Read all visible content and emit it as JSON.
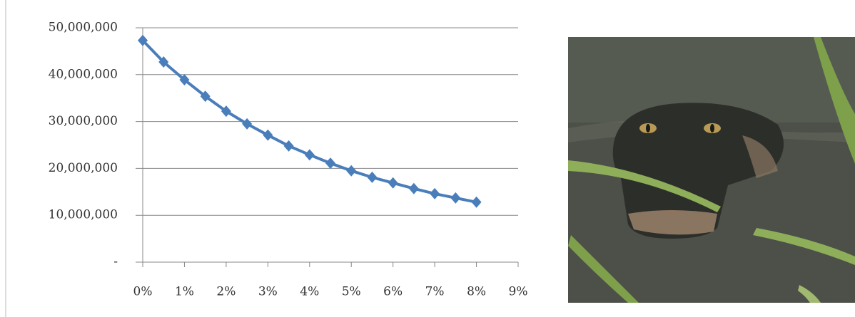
{
  "chart_data": {
    "type": "line",
    "x": [
      0,
      0.5,
      1,
      1.5,
      2,
      2.5,
      3,
      3.5,
      4,
      4.5,
      5,
      5.5,
      6,
      6.5,
      7,
      7.5,
      8
    ],
    "series": [
      {
        "color": "#4a7ebb",
        "values": [
          47300000,
          42700000,
          38900000,
          35400000,
          32200000,
          29500000,
          27100000,
          24800000,
          22900000,
          21100000,
          19500000,
          18100000,
          16900000,
          15700000,
          14600000,
          13700000,
          12800000
        ]
      }
    ],
    "xlim": [
      0,
      9
    ],
    "xticks": [
      {
        "value": 0,
        "label": "0%"
      },
      {
        "value": 1,
        "label": "1%"
      },
      {
        "value": 2,
        "label": "2%"
      },
      {
        "value": 3,
        "label": "3%"
      },
      {
        "value": 4,
        "label": "4%"
      },
      {
        "value": 5,
        "label": "5%"
      },
      {
        "value": 6,
        "label": "6%"
      },
      {
        "value": 7,
        "label": "7%"
      },
      {
        "value": 8,
        "label": "8%"
      },
      {
        "value": 9,
        "label": "9%"
      }
    ],
    "ylim": [
      0,
      50000000
    ],
    "yticks": [
      {
        "value": 0,
        "label": "-"
      },
      {
        "value": 10000000,
        "label": "10,000,000"
      },
      {
        "value": 20000000,
        "label": "20,000,000"
      },
      {
        "value": 30000000,
        "label": "30,000,000"
      },
      {
        "value": 40000000,
        "label": "40,000,000"
      },
      {
        "value": 50000000,
        "label": "50,000,000"
      }
    ],
    "grid": true,
    "marker": "diamond"
  }
}
